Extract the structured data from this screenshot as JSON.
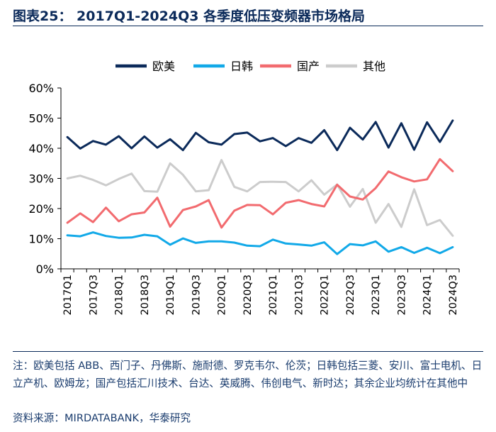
{
  "title": "图表25： 2017Q1-2024Q3 各季度低压变频器市场格局",
  "note": "注：欧美包括 ABB、西门子、丹佛斯、施耐德、罗克韦尔、伦茨；日韩包括三菱、安川、富士电机、日立产机、欧姆龙；国产包括汇川技术、台达、英威腾、伟创电气、新时达；其余企业均统计在其他中",
  "source": "资料来源：MIRDATABANK，华泰研究",
  "chart_data": {
    "type": "line",
    "title": "",
    "xlabel": "",
    "ylabel": "",
    "ylim": [
      0,
      60
    ],
    "yticks": [
      "0%",
      "10%",
      "20%",
      "30%",
      "40%",
      "50%",
      "60%"
    ],
    "categories": [
      "2017Q1",
      "2017Q2",
      "2017Q3",
      "2017Q4",
      "2018Q1",
      "2018Q2",
      "2018Q3",
      "2018Q4",
      "2019Q1",
      "2019Q2",
      "2019Q3",
      "2019Q4",
      "2020Q1",
      "2020Q2",
      "2020Q3",
      "2020Q4",
      "2021Q1",
      "2021Q2",
      "2021Q3",
      "2021Q4",
      "2022Q1",
      "2022Q2",
      "2022Q3",
      "2022Q4",
      "2023Q1",
      "2023Q2",
      "2023Q3",
      "2023Q4",
      "2024Q1",
      "2024Q2",
      "2024Q3"
    ],
    "tick_labels": [
      "2017Q1",
      "2017Q3",
      "2018Q1",
      "2018Q3",
      "2019Q1",
      "2019Q3",
      "2020Q1",
      "2020Q3",
      "2021Q1",
      "2021Q3",
      "2022Q1",
      "2022Q3",
      "2023Q1",
      "2023Q3",
      "2024Q1",
      "2024Q3"
    ],
    "series": [
      {
        "name": "欧美",
        "color": "#0b2a5a",
        "values": [
          43.7,
          39.9,
          42.4,
          41.2,
          44.0,
          40.0,
          43.9,
          40.2,
          43.0,
          39.4,
          45.1,
          42.0,
          41.2,
          44.7,
          45.2,
          42.3,
          43.4,
          40.7,
          43.4,
          41.8,
          46.0,
          39.4,
          46.8,
          42.9,
          48.7,
          40.2,
          48.3,
          39.5,
          48.6,
          42.1,
          49.2
        ]
      },
      {
        "name": "日韩",
        "color": "#12a9e8",
        "values": [
          11.1,
          10.8,
          12.1,
          10.9,
          10.3,
          10.4,
          11.3,
          10.8,
          8.0,
          10.1,
          8.6,
          9.1,
          9.1,
          8.7,
          7.7,
          7.5,
          9.7,
          8.4,
          8.1,
          7.7,
          8.8,
          4.9,
          8.2,
          7.8,
          9.1,
          5.7,
          7.2,
          5.3,
          7.0,
          5.2,
          7.2
        ]
      },
      {
        "name": "国产",
        "color": "#f26b6f",
        "values": [
          15.3,
          18.4,
          15.5,
          20.3,
          15.8,
          18.1,
          18.7,
          23.6,
          14.0,
          19.5,
          20.7,
          22.8,
          13.7,
          19.3,
          21.2,
          21.1,
          18.1,
          21.9,
          22.8,
          21.5,
          20.7,
          27.9,
          24.0,
          23.0,
          26.8,
          32.3,
          30.4,
          29.0,
          29.7,
          36.4,
          32.4
        ]
      },
      {
        "name": "其他",
        "color": "#cccccc",
        "values": [
          30.0,
          30.9,
          29.5,
          27.7,
          29.8,
          31.6,
          25.8,
          25.6,
          35.0,
          31.2,
          25.7,
          26.1,
          36.1,
          27.2,
          25.7,
          28.8,
          28.9,
          28.8,
          25.7,
          29.4,
          24.6,
          28.0,
          20.6,
          26.5,
          15.3,
          21.5,
          13.9,
          26.4,
          14.5,
          16.2,
          11.0
        ]
      }
    ]
  }
}
